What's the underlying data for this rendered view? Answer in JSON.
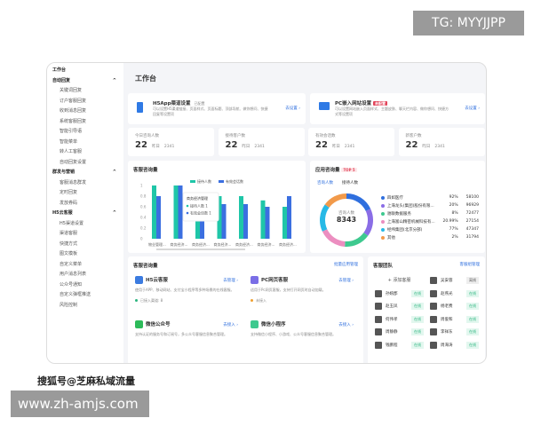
{
  "watermarks": {
    "tg": "TG: MYYJJPP",
    "sohu": "搜狐号@芝麻私域流量",
    "site": "www.zh-amjs.com"
  },
  "sidebar": {
    "home": "工作台",
    "groups": [
      {
        "label": "自动回复",
        "items": [
          "关键词回复",
          "订户客服回复",
          "收到消息回复",
          "系统客服回复",
          "智能引导语",
          "智能菜单",
          "转人工客服",
          "自动回复设置"
        ]
      },
      {
        "label": "群发与营销",
        "items": [
          "客服消息群发",
          "定时回复",
          "发放券码"
        ]
      },
      {
        "label": "H5云客服",
        "items": [
          "H5渠道设置",
          "渠道客服",
          "快捷方式",
          "图文模板",
          "自定义菜单",
          "用户消息列表",
          "公众号通知",
          "自定义弹框推送",
          "风险控制"
        ]
      }
    ]
  },
  "header": {
    "title": "工作台"
  },
  "setup": [
    {
      "title": "H5App渠道设置",
      "badge": "已配置",
      "desc": "可以设置H5渠道链接、页面样式、页面标题、顶部导航、做你想问、快捷回复等设置项",
      "link": "去设置 ›"
    },
    {
      "title": "PC嵌入网站设置",
      "badge": "未配置",
      "desc": "可以设置网站嵌入页面样式、主题皮肤、聊天栏内容、做你想问、快捷方式等设置项",
      "link": "去设置 ›"
    }
  ],
  "stats": [
    {
      "label": "今日咨询人数",
      "value": "22",
      "sub": "昨日",
      "subval": "2341"
    },
    {
      "label": "接待客户数",
      "value": "22",
      "sub": "昨日",
      "subval": "2341"
    },
    {
      "label": "有效会话数",
      "value": "22",
      "sub": "昨日",
      "subval": "2341"
    },
    {
      "label": "新客户数",
      "value": "22",
      "sub": "昨日",
      "subval": "2341"
    }
  ],
  "chart_data": [
    {
      "type": "bar",
      "title": "客服咨询量",
      "categories": [
        "物业管理...",
        "商务经济...",
        "商务经济...",
        "商务经济...",
        "商务经济...",
        "商务经济...",
        "商务经济..."
      ],
      "series": [
        {
          "name": "接待人数",
          "values": [
            1,
            1,
            0.4,
            0.8,
            0.8,
            0.72,
            0.6
          ],
          "color": "#1fc6a8"
        },
        {
          "name": "有效会话数",
          "values": [
            0.8,
            1,
            0.4,
            0.65,
            0.65,
            0.6,
            0.8
          ],
          "color": "#3b6fe0"
        }
      ],
      "yticks": [
        "0",
        "0.2",
        "0.4",
        "0.6",
        "0.8",
        "1"
      ],
      "ylim": [
        0,
        1
      ],
      "tooltip": {
        "title": "商务经济管理",
        "rows": [
          {
            "name": "接待人数",
            "value": "1"
          },
          {
            "name": "有效会话数",
            "value": "1"
          }
        ]
      }
    },
    {
      "type": "pie",
      "title": "应用咨询量",
      "badge": "TOP 5",
      "tabs": [
        "咨询人数",
        "接待人数"
      ],
      "center_label": "咨询人数",
      "center_value": "8343",
      "rows": [
        {
          "name": "四如医疗",
          "pct": "92%",
          "value": "58100",
          "color": "#2f6fde"
        },
        {
          "name": "上海龙头(集团)股份有限...",
          "pct": "20%",
          "value": "96929",
          "color": "#8a6de6"
        },
        {
          "name": "驰联数据服务",
          "pct": "8%",
          "value": "72477",
          "color": "#3ec98f"
        },
        {
          "name": "上海富山精密机械科技有...",
          "pct": "20.99%",
          "value": "27154",
          "color": "#ec8ec0"
        },
        {
          "name": "经纬集团(北京分部)",
          "pct": "77%",
          "value": "47347",
          "color": "#27b9e6"
        },
        {
          "name": "其他",
          "pct": "2%",
          "value": "31794",
          "color": "#f29a4a"
        }
      ],
      "slices": [
        18,
        17,
        16,
        17,
        17,
        15
      ]
    }
  ],
  "service": {
    "title": "客服咨询量",
    "link": "批量应用管理",
    "items": [
      {
        "name": "H5云客服",
        "link": "去管理 ›",
        "desc": "使用于APP、移动网站、支付宝小程序等多种场景的在线客服。",
        "status": "已接入渠道: 8",
        "color": "#3b7be0",
        "sc": "#2bb57f"
      },
      {
        "name": "PC网页客服",
        "link": "去管理 ›",
        "desc": "适用于Pc网页客服，支持打开网页时自动加载。",
        "status": "未接入",
        "color": "#7a6ee6",
        "sc": "#f0a030"
      },
      {
        "name": "微信公众号",
        "link": "去接入 ›",
        "desc": "支持认证的服务号和订阅号，多公众号客服信息聚合管理。",
        "status": "",
        "color": "#2dbb5a",
        "sc": ""
      },
      {
        "name": "微信小程序",
        "link": "去接入 ›",
        "desc": "支持微信小程序、小游戏、公众号客服信息聚合管理。",
        "status": "",
        "color": "#3ec98f",
        "sc": ""
      }
    ]
  },
  "team": {
    "title": "客服团队",
    "link": "客服组管理",
    "add": "+ 添加客服",
    "members": [
      {
        "name": "吴安蓉",
        "status": "离线"
      },
      {
        "name": "孙婉郡",
        "status": "在线"
      },
      {
        "name": "赵燕光",
        "status": "在线"
      },
      {
        "name": "赵玉凤",
        "status": "在线"
      },
      {
        "name": "杨老费",
        "status": "在线"
      },
      {
        "name": "何伟孝",
        "status": "在线"
      },
      {
        "name": "周俊和",
        "status": "在线"
      },
      {
        "name": "周静静",
        "status": "在线"
      },
      {
        "name": "李祥东",
        "status": "在线"
      },
      {
        "name": "钱鹏程",
        "status": "在线"
      },
      {
        "name": "周海涛",
        "status": "在线"
      }
    ]
  }
}
